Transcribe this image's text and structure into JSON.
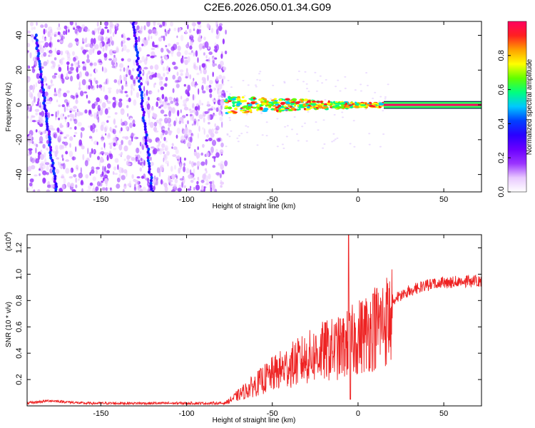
{
  "title": "C2E6.2026.050.01.34.G09",
  "chart_data": [
    {
      "type": "heatmap",
      "title": "C2E6.2026.050.01.34.G09",
      "xlabel": "Height of straight line (km)",
      "ylabel": "Frequency (Hz)",
      "xlim": [
        -193,
        72
      ],
      "ylim": [
        -50,
        48
      ],
      "x_ticks": [
        -150,
        -100,
        -50,
        0,
        50
      ],
      "y_ticks": [
        -40,
        -20,
        0,
        20,
        40
      ],
      "colorbar": {
        "label": "Normalized spectral amplitude",
        "range": [
          0,
          1
        ],
        "ticks": [
          "0.0",
          "0.2",
          "0.4",
          "0.6",
          "0.8"
        ],
        "colors": [
          "#ffffff",
          "#e8c8ff",
          "#9a33ff",
          "#6a00ff",
          "#2a00ff",
          "#0040ff",
          "#00c8ff",
          "#00ff80",
          "#60ff00",
          "#ffff00",
          "#ffa000",
          "#ff2020",
          "#ff0060"
        ]
      },
      "regions": [
        {
          "name": "noise",
          "x_range": [
            -193,
            -77
          ],
          "freq_range": [
            -50,
            48
          ],
          "amplitude": 0.1
        },
        {
          "name": "signal_band",
          "x_range": [
            -77,
            72
          ],
          "center_freq": 0,
          "half_width_hz": 2,
          "amplitude_start": 0.5,
          "amplitude_end": 1.0
        }
      ],
      "streaks": [
        {
          "from": [
            -188,
            40
          ],
          "to": [
            -176,
            -50
          ]
        },
        {
          "from": [
            -131,
            48
          ],
          "to": [
            -120,
            -50
          ]
        }
      ]
    },
    {
      "type": "line",
      "xlabel": "Height of straight line (km)",
      "ylabel": "SNR (10 * v/v)",
      "y_multiplier": "(x10",
      "y_multiplier_exp": "4",
      "xlim": [
        -193,
        72
      ],
      "ylim": [
        0,
        1.3
      ],
      "x_ticks": [
        -150,
        -100,
        -50,
        0,
        50
      ],
      "y_ticks": [
        0.2,
        0.4,
        0.6,
        0.8,
        1.0,
        1.2
      ],
      "series_color": "#ee2222",
      "profile": [
        {
          "x": -193,
          "y": 0.02
        },
        {
          "x": -180,
          "y": 0.04
        },
        {
          "x": -160,
          "y": 0.02
        },
        {
          "x": -120,
          "y": 0.02
        },
        {
          "x": -78,
          "y": 0.02
        },
        {
          "x": -70,
          "y": 0.1
        },
        {
          "x": -60,
          "y": 0.2
        },
        {
          "x": -50,
          "y": 0.3
        },
        {
          "x": -40,
          "y": 0.38
        },
        {
          "x": -30,
          "y": 0.45
        },
        {
          "x": -20,
          "y": 0.52
        },
        {
          "x": -10,
          "y": 0.55
        },
        {
          "x": -5,
          "y": 0.6
        },
        {
          "x": 0,
          "y": 0.65
        },
        {
          "x": 10,
          "y": 0.75
        },
        {
          "x": 20,
          "y": 0.85
        },
        {
          "x": 30,
          "y": 0.92
        },
        {
          "x": 40,
          "y": 0.96
        },
        {
          "x": 50,
          "y": 0.98
        },
        {
          "x": 60,
          "y": 0.99
        },
        {
          "x": 72,
          "y": 0.99
        }
      ],
      "spikes": [
        {
          "x": -5.5,
          "y": 1.3
        },
        {
          "x": -4.5,
          "y": 0.05
        },
        {
          "x": 9,
          "y": 0.85
        }
      ]
    }
  ]
}
